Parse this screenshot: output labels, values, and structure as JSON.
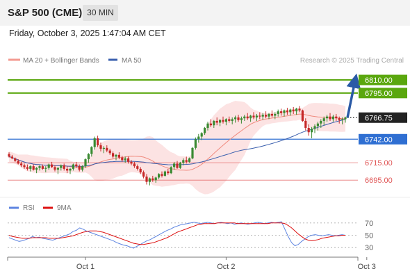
{
  "header": {
    "title": "S&P 500 (CME)",
    "timeframe": "30 MIN"
  },
  "datetime": "Friday, October 3, 2025 1:47:04 AM CET",
  "legend": {
    "bollinger_label": "MA 20 + Bollinger Bands",
    "ma50_label": "MA 50",
    "watermark": "Research © 2025 Trading Central"
  },
  "colors": {
    "up": "#3a8a32",
    "down": "#c62828",
    "ma20": "#f08a7e",
    "ma50": "#3a5fae",
    "band": "#fbdada",
    "target": "#5aa70e",
    "pivot": "#2f6fd2",
    "support": "#e05555",
    "arrow": "#2a5aa6",
    "rsi": "#5d84e0",
    "rsi_ma": "#dd1111"
  },
  "levels": [
    {
      "value": "6810.00",
      "type": "target"
    },
    {
      "value": "6795.00",
      "type": "target"
    },
    {
      "value": "6766.75",
      "type": "last"
    },
    {
      "value": "6742.00",
      "type": "pivot"
    },
    {
      "value": "6715.00",
      "type": "support"
    },
    {
      "value": "6695.00",
      "type": "support"
    }
  ],
  "x_axis": {
    "ticks": [
      "Oct 1",
      "Oct 2",
      "Oct 3"
    ]
  },
  "rsi_panel": {
    "label_rsi": "RSI",
    "label_ma": "9MA",
    "ticks": [
      "70",
      "50",
      "30"
    ]
  },
  "chart_data": {
    "type": "candlestick",
    "title": "S&P 500 (CME)",
    "interval": "30 MIN",
    "y_unit": "points",
    "ylim": [
      6680,
      6822
    ],
    "x_ticks": [
      "Oct 1",
      "Oct 2",
      "Oct 3"
    ],
    "candles_per_day": 46,
    "ohlc": [
      [
        6725,
        6727,
        6721,
        6722
      ],
      [
        6722,
        6724,
        6719,
        6720
      ],
      [
        6720,
        6721,
        6716,
        6717
      ],
      [
        6717,
        6719,
        6713,
        6714
      ],
      [
        6714,
        6716,
        6710,
        6712
      ],
      [
        6712,
        6714,
        6708,
        6710
      ],
      [
        6710,
        6713,
        6706,
        6708
      ],
      [
        6708,
        6712,
        6705,
        6711
      ],
      [
        6711,
        6713,
        6706,
        6707
      ],
      [
        6707,
        6710,
        6703,
        6709
      ],
      [
        6709,
        6712,
        6706,
        6711
      ],
      [
        6711,
        6713,
        6707,
        6708
      ],
      [
        6708,
        6711,
        6704,
        6709
      ],
      [
        6709,
        6714,
        6707,
        6713
      ],
      [
        6713,
        6716,
        6709,
        6710
      ],
      [
        6710,
        6712,
        6705,
        6707
      ],
      [
        6707,
        6710,
        6702,
        6709
      ],
      [
        6709,
        6713,
        6706,
        6712
      ],
      [
        6712,
        6714,
        6706,
        6708
      ],
      [
        6708,
        6711,
        6703,
        6706
      ],
      [
        6706,
        6709,
        6702,
        6708
      ],
      [
        6708,
        6714,
        6706,
        6713
      ],
      [
        6713,
        6716,
        6709,
        6711
      ],
      [
        6711,
        6713,
        6705,
        6707
      ],
      [
        6707,
        6712,
        6705,
        6711
      ],
      [
        6711,
        6720,
        6709,
        6719
      ],
      [
        6719,
        6726,
        6715,
        6725
      ],
      [
        6725,
        6734,
        6722,
        6733
      ],
      [
        6733,
        6745,
        6730,
        6743
      ],
      [
        6743,
        6746,
        6733,
        6735
      ],
      [
        6735,
        6738,
        6728,
        6731
      ],
      [
        6731,
        6734,
        6726,
        6732
      ],
      [
        6732,
        6735,
        6727,
        6729
      ],
      [
        6729,
        6731,
        6724,
        6726
      ],
      [
        6726,
        6728,
        6720,
        6722
      ],
      [
        6722,
        6725,
        6718,
        6724
      ],
      [
        6724,
        6727,
        6719,
        6721
      ],
      [
        6721,
        6723,
        6716,
        6718
      ],
      [
        6718,
        6722,
        6715,
        6720
      ],
      [
        6720,
        6722,
        6714,
        6716
      ],
      [
        6716,
        6718,
        6712,
        6714
      ],
      [
        6714,
        6716,
        6709,
        6711
      ],
      [
        6711,
        6713,
        6706,
        6708
      ],
      [
        6708,
        6710,
        6702,
        6704
      ],
      [
        6704,
        6706,
        6697,
        6699
      ],
      [
        6699,
        6702,
        6690,
        6693
      ],
      [
        6693,
        6698,
        6689,
        6697
      ],
      [
        6697,
        6700,
        6693,
        6695
      ],
      [
        6695,
        6699,
        6692,
        6698
      ],
      [
        6698,
        6703,
        6696,
        6702
      ],
      [
        6702,
        6705,
        6698,
        6700
      ],
      [
        6700,
        6706,
        6699,
        6705
      ],
      [
        6705,
        6708,
        6701,
        6703
      ],
      [
        6703,
        6711,
        6702,
        6710
      ],
      [
        6710,
        6716,
        6707,
        6714
      ],
      [
        6714,
        6717,
        6708,
        6709
      ],
      [
        6709,
        6716,
        6708,
        6715
      ],
      [
        6715,
        6720,
        6712,
        6718
      ],
      [
        6718,
        6722,
        6714,
        6716
      ],
      [
        6716,
        6721,
        6715,
        6720
      ],
      [
        6720,
        6733,
        6719,
        6732
      ],
      [
        6732,
        6744,
        6730,
        6742
      ],
      [
        6742,
        6748,
        6738,
        6745
      ],
      [
        6745,
        6750,
        6741,
        6749
      ],
      [
        6749,
        6756,
        6747,
        6755
      ],
      [
        6755,
        6762,
        6752,
        6760
      ],
      [
        6760,
        6765,
        6756,
        6758
      ],
      [
        6758,
        6764,
        6755,
        6763
      ],
      [
        6763,
        6767,
        6758,
        6761
      ],
      [
        6761,
        6765,
        6757,
        6764
      ],
      [
        6764,
        6768,
        6760,
        6762
      ],
      [
        6762,
        6766,
        6758,
        6765
      ],
      [
        6765,
        6768,
        6761,
        6763
      ],
      [
        6763,
        6767,
        6759,
        6765
      ],
      [
        6765,
        6769,
        6761,
        6767
      ],
      [
        6767,
        6770,
        6762,
        6764
      ],
      [
        6764,
        6768,
        6760,
        6766
      ],
      [
        6766,
        6770,
        6763,
        6768
      ],
      [
        6768,
        6772,
        6764,
        6766
      ],
      [
        6766,
        6770,
        6762,
        6769
      ],
      [
        6769,
        6773,
        6765,
        6767
      ],
      [
        6767,
        6771,
        6763,
        6769
      ],
      [
        6769,
        6773,
        6765,
        6768
      ],
      [
        6768,
        6772,
        6764,
        6770
      ],
      [
        6770,
        6774,
        6766,
        6768
      ],
      [
        6768,
        6772,
        6765,
        6771
      ],
      [
        6771,
        6775,
        6767,
        6769
      ],
      [
        6769,
        6773,
        6765,
        6771
      ],
      [
        6771,
        6776,
        6768,
        6774
      ],
      [
        6774,
        6777,
        6769,
        6772
      ],
      [
        6772,
        6776,
        6768,
        6775
      ],
      [
        6775,
        6778,
        6770,
        6773
      ],
      [
        6773,
        6777,
        6769,
        6776
      ],
      [
        6776,
        6779,
        6771,
        6774
      ],
      [
        6774,
        6778,
        6770,
        6777
      ],
      [
        6777,
        6780,
        6773,
        6775
      ],
      [
        6775,
        6776,
        6762,
        6763
      ],
      [
        6763,
        6766,
        6752,
        6755
      ],
      [
        6755,
        6759,
        6746,
        6750
      ],
      [
        6750,
        6756,
        6743,
        6754
      ],
      [
        6754,
        6759,
        6749,
        6757
      ],
      [
        6757,
        6762,
        6752,
        6760
      ],
      [
        6760,
        6765,
        6755,
        6763
      ],
      [
        6763,
        6768,
        6758,
        6766
      ],
      [
        6766,
        6770,
        6762,
        6768
      ],
      [
        6768,
        6772,
        6763,
        6765
      ],
      [
        6765,
        6770,
        6762,
        6768
      ],
      [
        6768,
        6771,
        6763,
        6766
      ],
      [
        6766,
        6768,
        6760,
        6764
      ],
      [
        6764,
        6767,
        6759,
        6765
      ],
      [
        6765,
        6768,
        6761,
        6767
      ]
    ],
    "levels": {
      "targets": [
        6810.0,
        6795.0
      ],
      "last": 6766.75,
      "pivot": 6742.0,
      "supports": [
        6715.0,
        6695.0
      ]
    },
    "projection_arrow": {
      "from": 6766.75,
      "to": 6810.0
    },
    "rsi": {
      "ylim": [
        20,
        80
      ],
      "ticks": [
        70,
        50,
        30
      ],
      "values": [
        46,
        44,
        42,
        40,
        41,
        43,
        45,
        48,
        46,
        47,
        45,
        44,
        43,
        42,
        44,
        46,
        48,
        50,
        52,
        56,
        58,
        62,
        60,
        57,
        55,
        53,
        51,
        49,
        47,
        45,
        43,
        41,
        38,
        36,
        34,
        33,
        31,
        29,
        32,
        35,
        38,
        41,
        43,
        46,
        49,
        52,
        55,
        58,
        60,
        63,
        65,
        67,
        68,
        69,
        70,
        71,
        70,
        69,
        70,
        71,
        70,
        69,
        70,
        71,
        70,
        69,
        70,
        68,
        69,
        70,
        69,
        68,
        69,
        70,
        71,
        70,
        69,
        70,
        71,
        70,
        71,
        72,
        60,
        48,
        38,
        33,
        35,
        40,
        44,
        48,
        50,
        51,
        50,
        49,
        50,
        51,
        50,
        49,
        50,
        51,
        50
      ],
      "ma9": [
        50,
        48,
        47,
        46,
        45,
        45,
        45,
        46,
        46,
        46,
        46,
        46,
        45,
        45,
        45,
        45,
        46,
        47,
        48,
        49,
        51,
        53,
        55,
        56,
        57,
        57,
        57,
        56,
        55,
        53,
        51,
        49,
        47,
        45,
        43,
        41,
        39,
        37,
        36,
        35,
        35,
        36,
        37,
        38,
        40,
        42,
        44,
        46,
        49,
        52,
        55,
        57,
        59,
        61,
        63,
        65,
        67,
        68,
        69,
        69,
        69,
        69,
        70,
        70,
        70,
        70,
        70,
        70,
        69,
        69,
        69,
        69,
        69,
        69,
        69,
        69,
        69,
        69,
        70,
        70,
        70,
        70,
        69,
        66,
        62,
        57,
        52,
        48,
        44,
        42,
        41,
        42,
        43,
        45,
        46,
        47,
        48,
        49,
        49,
        50,
        50
      ]
    }
  }
}
